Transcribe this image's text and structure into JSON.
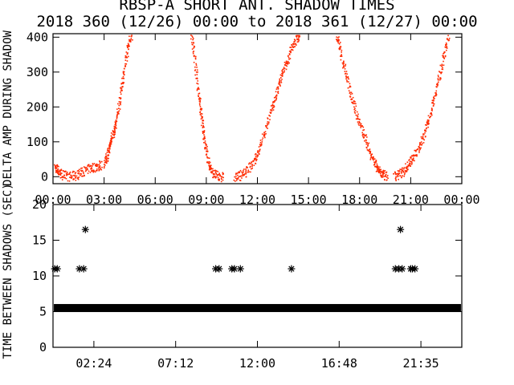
{
  "chart_data": [
    {
      "type": "scatter",
      "title": "RBSP-A SHORT ANT. SHADOW TIMES",
      "subtitle": "2018 360 (12/26) 00:00 to 2018 361 (12/27) 00:00",
      "ylabel": "DELTA AMP DURING SHADOW",
      "xlim": [
        "00:00",
        "24:00"
      ],
      "ylim": [
        -20,
        410
      ],
      "x_ticks": [
        "00:00",
        "03:00",
        "06:00",
        "09:00",
        "12:00",
        "15:00",
        "18:00",
        "21:00",
        "00:00"
      ],
      "y_ticks": [
        0,
        100,
        200,
        300,
        400
      ],
      "color": "#ff2a00",
      "series": [
        {
          "segments": [
            {
              "x_hours": [
                0.05,
                0.25,
                0.5,
                0.9,
                1.3,
                1.7,
                2.1,
                2.5,
                2.8
              ],
              "y": [
                30,
                20,
                8,
                2,
                5,
                15,
                25,
                30,
                35
              ]
            },
            {
              "x_hours": [
                3.0,
                3.15,
                3.3,
                3.45,
                3.6,
                3.8,
                4.0,
                4.2,
                4.4,
                4.6
              ],
              "y": [
                40,
                60,
                90,
                120,
                140,
                190,
                260,
                320,
                380,
                410
              ]
            },
            {
              "x_hours": [
                8.1,
                8.3,
                8.5,
                8.65,
                8.8,
                8.95,
                9.1,
                9.3,
                9.6,
                10.0
              ],
              "y": [
                410,
                340,
                250,
                190,
                130,
                80,
                40,
                15,
                3,
                0
              ]
            },
            {
              "x_hours": [
                10.6,
                11.0,
                11.4,
                11.8,
                12.1,
                12.4,
                12.8,
                13.1,
                13.4,
                13.7,
                14.0,
                14.3,
                14.5
              ],
              "y": [
                0,
                5,
                20,
                45,
                80,
                130,
                190,
                240,
                290,
                330,
                370,
                400,
                410
              ]
            },
            {
              "x_hours": [
                16.6,
                16.8,
                17.1,
                17.4,
                17.7,
                18.0,
                18.3,
                18.6,
                18.9,
                19.1,
                19.3,
                19.6
              ],
              "y": [
                410,
                370,
                310,
                250,
                200,
                150,
                110,
                70,
                40,
                20,
                8,
                0
              ]
            },
            {
              "x_hours": [
                20.0,
                20.3,
                20.6,
                20.9,
                21.2,
                21.5,
                21.8,
                22.1,
                22.4,
                22.7,
                23.0,
                23.2
              ],
              "y": [
                0,
                8,
                20,
                40,
                60,
                90,
                130,
                180,
                240,
                300,
                360,
                410
              ]
            }
          ]
        }
      ]
    },
    {
      "type": "scatter",
      "ylabel": "TIME BETWEEN SHADOWS (SEC)",
      "xlim": [
        "00:00",
        "24:00"
      ],
      "ylim": [
        0,
        20
      ],
      "x_ticks": [
        "02:24",
        "07:12",
        "12:00",
        "16:48",
        "21:35"
      ],
      "y_ticks": [
        0,
        5,
        10,
        15,
        20
      ],
      "marker": "asterisk",
      "series": [
        {
          "band": {
            "x_hours": [
              0.05,
              23.95
            ],
            "y": 5.5
          },
          "points": [
            {
              "x_hours": 0.1,
              "y": 11
            },
            {
              "x_hours": 0.25,
              "y": 11
            },
            {
              "x_hours": 1.55,
              "y": 11
            },
            {
              "x_hours": 1.8,
              "y": 11
            },
            {
              "x_hours": 1.9,
              "y": 16.5
            },
            {
              "x_hours": 9.55,
              "y": 11
            },
            {
              "x_hours": 9.75,
              "y": 11
            },
            {
              "x_hours": 10.5,
              "y": 11
            },
            {
              "x_hours": 10.65,
              "y": 11
            },
            {
              "x_hours": 11.0,
              "y": 11
            },
            {
              "x_hours": 14.0,
              "y": 11
            },
            {
              "x_hours": 20.1,
              "y": 11
            },
            {
              "x_hours": 20.3,
              "y": 11
            },
            {
              "x_hours": 20.4,
              "y": 16.5
            },
            {
              "x_hours": 20.5,
              "y": 11
            },
            {
              "x_hours": 21.0,
              "y": 11
            },
            {
              "x_hours": 21.1,
              "y": 11
            },
            {
              "x_hours": 21.25,
              "y": 11
            }
          ]
        }
      ]
    }
  ]
}
